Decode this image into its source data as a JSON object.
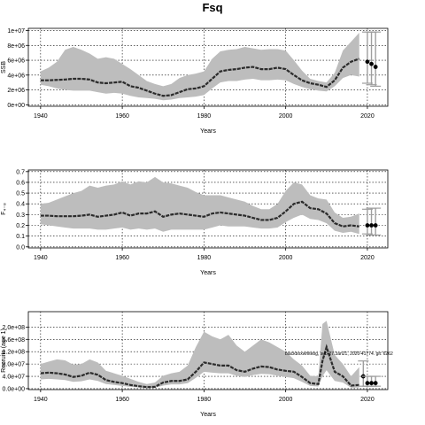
{
  "title": "Fsq",
  "chart_data": [
    {
      "type": "area",
      "ylabel": "SSB",
      "xlabel": "Years",
      "xlim": [
        1937,
        2025
      ],
      "ylim": [
        -200000,
        10300000
      ],
      "x_ticks": [
        1940,
        1960,
        1980,
        2000,
        2020
      ],
      "x_tick_labels": [
        "1940",
        "1960",
        "1980",
        "2000",
        "2020"
      ],
      "y_ticks": [
        0,
        2000000,
        4000000,
        6000000,
        8000000,
        10000000
      ],
      "y_tick_labels": [
        "0e+00",
        "2e+06",
        "4e+06",
        "6e+06",
        "8e+06",
        "1e+07"
      ],
      "grid": true,
      "series": [
        {
          "x": [
            1940,
            1942,
            1944,
            1946,
            1948,
            1950,
            1952,
            1954,
            1956,
            1958,
            1960,
            1962,
            1964,
            1966,
            1968,
            1970,
            1972,
            1974,
            1976,
            1978,
            1980,
            1982,
            1984,
            1986,
            1988,
            1990,
            1992,
            1994,
            1996,
            1998,
            2000,
            2002,
            2004,
            2006,
            2008,
            2010,
            2012,
            2014,
            2016,
            2018
          ],
          "y": [
            3300000,
            3300000,
            3350000,
            3400000,
            3500000,
            3500000,
            3400000,
            3000000,
            2900000,
            3000000,
            3100000,
            2500000,
            2300000,
            1900000,
            1500000,
            1200000,
            1300000,
            1700000,
            2100000,
            2200000,
            2500000,
            3500000,
            4500000,
            4700000,
            4800000,
            5000000,
            5100000,
            4800000,
            4800000,
            5000000,
            4800000,
            4000000,
            3300000,
            2900000,
            2700000,
            2400000,
            3300000,
            5000000,
            5800000,
            6200000
          ],
          "lower": [
            2700000,
            2500000,
            2200000,
            2000000,
            1900000,
            1900000,
            1900000,
            1700000,
            1500000,
            1600000,
            1500000,
            1200000,
            1000000,
            900000,
            800000,
            600000,
            700000,
            900000,
            1000000,
            1100000,
            1300000,
            2200000,
            3000000,
            3200000,
            3200000,
            3400000,
            3500000,
            3300000,
            3300000,
            3400000,
            3300000,
            2800000,
            2400000,
            2100000,
            1900000,
            1800000,
            2500000,
            3600000,
            4000000,
            3800000
          ],
          "upper": [
            4500000,
            5000000,
            5800000,
            7400000,
            7800000,
            7400000,
            6900000,
            6200000,
            6400000,
            6200000,
            5500000,
            4800000,
            4000000,
            3200000,
            2800000,
            2500000,
            2800000,
            3600000,
            4000000,
            4200000,
            4500000,
            6200000,
            7200000,
            7400000,
            7500000,
            7800000,
            7600000,
            7400000,
            7500000,
            7500000,
            7300000,
            6000000,
            4600000,
            3500000,
            3200000,
            3000000,
            4300000,
            7300000,
            8500000,
            9700000
          ]
        }
      ],
      "projection": {
        "x": [
          2020,
          2021,
          2022
        ],
        "y": [
          5800000,
          5500000,
          5100000
        ],
        "lower": [
          2900000,
          2700000,
          2500000
        ],
        "upper": [
          9800000,
          9800000,
          9800000
        ]
      }
    },
    {
      "type": "area",
      "ylabel": "F₄₋₈",
      "xlabel": "Years",
      "xlim": [
        1937,
        2025
      ],
      "ylim": [
        -0.01,
        0.715
      ],
      "x_ticks": [
        1940,
        1960,
        1980,
        2000,
        2020
      ],
      "x_tick_labels": [
        "1940",
        "1960",
        "1980",
        "2000",
        "2020"
      ],
      "y_ticks": [
        0,
        0.1,
        0.2,
        0.3,
        0.4,
        0.5,
        0.6,
        0.7
      ],
      "y_tick_labels": [
        "0.0",
        "0.1",
        "0.2",
        "0.3",
        "0.4",
        "0.5",
        "0.6",
        "0.7"
      ],
      "grid": true,
      "series": [
        {
          "x": [
            1940,
            1942,
            1944,
            1946,
            1948,
            1950,
            1952,
            1954,
            1956,
            1958,
            1960,
            1962,
            1964,
            1966,
            1968,
            1970,
            1972,
            1974,
            1976,
            1978,
            1980,
            1982,
            1984,
            1986,
            1988,
            1990,
            1992,
            1994,
            1996,
            1998,
            2000,
            2002,
            2004,
            2006,
            2008,
            2010,
            2012,
            2014,
            2016,
            2018
          ],
          "y": [
            0.29,
            0.29,
            0.285,
            0.285,
            0.285,
            0.29,
            0.3,
            0.28,
            0.29,
            0.3,
            0.32,
            0.29,
            0.31,
            0.31,
            0.33,
            0.28,
            0.3,
            0.31,
            0.3,
            0.29,
            0.28,
            0.31,
            0.32,
            0.31,
            0.3,
            0.29,
            0.27,
            0.25,
            0.25,
            0.27,
            0.33,
            0.4,
            0.42,
            0.36,
            0.35,
            0.31,
            0.22,
            0.19,
            0.2,
            0.19
          ],
          "lower": [
            0.21,
            0.2,
            0.19,
            0.18,
            0.17,
            0.17,
            0.17,
            0.16,
            0.16,
            0.17,
            0.18,
            0.16,
            0.17,
            0.16,
            0.17,
            0.14,
            0.16,
            0.16,
            0.16,
            0.16,
            0.16,
            0.18,
            0.2,
            0.19,
            0.19,
            0.19,
            0.18,
            0.17,
            0.17,
            0.18,
            0.23,
            0.27,
            0.3,
            0.26,
            0.25,
            0.22,
            0.15,
            0.13,
            0.14,
            0.12
          ],
          "upper": [
            0.4,
            0.41,
            0.44,
            0.47,
            0.5,
            0.52,
            0.57,
            0.55,
            0.57,
            0.58,
            0.61,
            0.58,
            0.61,
            0.6,
            0.65,
            0.6,
            0.59,
            0.57,
            0.55,
            0.51,
            0.48,
            0.48,
            0.48,
            0.46,
            0.44,
            0.42,
            0.38,
            0.35,
            0.35,
            0.4,
            0.52,
            0.6,
            0.58,
            0.48,
            0.45,
            0.44,
            0.32,
            0.27,
            0.28,
            0.31
          ]
        }
      ],
      "projection": {
        "x": [
          2020,
          2021,
          2022
        ],
        "y": [
          0.2,
          0.2,
          0.2
        ],
        "lower": [
          0.12,
          0.11,
          0.11
        ],
        "upper": [
          0.35,
          0.36,
          0.36
        ]
      }
    },
    {
      "type": "area",
      "ylabel": "Recruits (age 1)",
      "xlabel": "Years",
      "xlim": [
        1937,
        2025
      ],
      "ylim": [
        -3000000,
        250000000
      ],
      "x_ticks": [
        1940,
        1960,
        1980,
        2000,
        2020
      ],
      "x_tick_labels": [
        "1940",
        "1960",
        "1980",
        "2000",
        "2020"
      ],
      "y_ticks": [
        0,
        40000000,
        80000000,
        120000000,
        160000000,
        200000000
      ],
      "y_tick_labels": [
        "0.0e+00",
        "4.0e+07",
        "8.0e+07",
        "1.2e+08",
        "1.6e+08",
        "2.0e+08"
      ],
      "grid": true,
      "series": [
        {
          "x": [
            1940,
            1942,
            1944,
            1946,
            1948,
            1950,
            1952,
            1954,
            1956,
            1958,
            1960,
            1962,
            1964,
            1966,
            1968,
            1970,
            1972,
            1974,
            1976,
            1978,
            1980,
            1982,
            1984,
            1986,
            1988,
            1990,
            1992,
            1994,
            1996,
            1998,
            2000,
            2002,
            2004,
            2006,
            2008,
            2009,
            2010,
            2012,
            2014,
            2016,
            2018
          ],
          "y": [
            50000000,
            52000000,
            50000000,
            46000000,
            38000000,
            42000000,
            52000000,
            45000000,
            28000000,
            22000000,
            18000000,
            12000000,
            8000000,
            5000000,
            6000000,
            20000000,
            25000000,
            25000000,
            30000000,
            55000000,
            85000000,
            80000000,
            75000000,
            75000000,
            60000000,
            55000000,
            65000000,
            72000000,
            70000000,
            62000000,
            58000000,
            55000000,
            38000000,
            18000000,
            15000000,
            90000000,
            135000000,
            55000000,
            40000000,
            10000000,
            12000000
          ],
          "lower": [
            30000000,
            32000000,
            30000000,
            28000000,
            22000000,
            24000000,
            30000000,
            25000000,
            15000000,
            12000000,
            9000000,
            6000000,
            4000000,
            2000000,
            3000000,
            10000000,
            14000000,
            14000000,
            18000000,
            35000000,
            55000000,
            52000000,
            50000000,
            50000000,
            42000000,
            38000000,
            44000000,
            48000000,
            47000000,
            42000000,
            38000000,
            34000000,
            22000000,
            9000000,
            7000000,
            40000000,
            60000000,
            25000000,
            20000000,
            3000000,
            4000000
          ],
          "upper": [
            80000000,
            88000000,
            95000000,
            92000000,
            78000000,
            80000000,
            95000000,
            85000000,
            58000000,
            50000000,
            42000000,
            32000000,
            22000000,
            15000000,
            20000000,
            42000000,
            50000000,
            55000000,
            75000000,
            135000000,
            185000000,
            170000000,
            160000000,
            175000000,
            140000000,
            120000000,
            140000000,
            160000000,
            150000000,
            135000000,
            120000000,
            95000000,
            75000000,
            42000000,
            40000000,
            210000000,
            220000000,
            110000000,
            80000000,
            40000000,
            70000000
          ]
        }
      ],
      "projection": {
        "x": [
          2019,
          2020,
          2021,
          2022
        ],
        "y": [
          40000000,
          18000000,
          18000000,
          18000000
        ],
        "lower": [
          8000000,
          8000000,
          8000000,
          8000000
        ],
        "upper": [
          90000000,
          40000000,
          40000000,
          40000000
        ]
      },
      "annotation": "blackboxwhitebg, sub-27.3an21, 2020-41774. git: 6262"
    }
  ]
}
